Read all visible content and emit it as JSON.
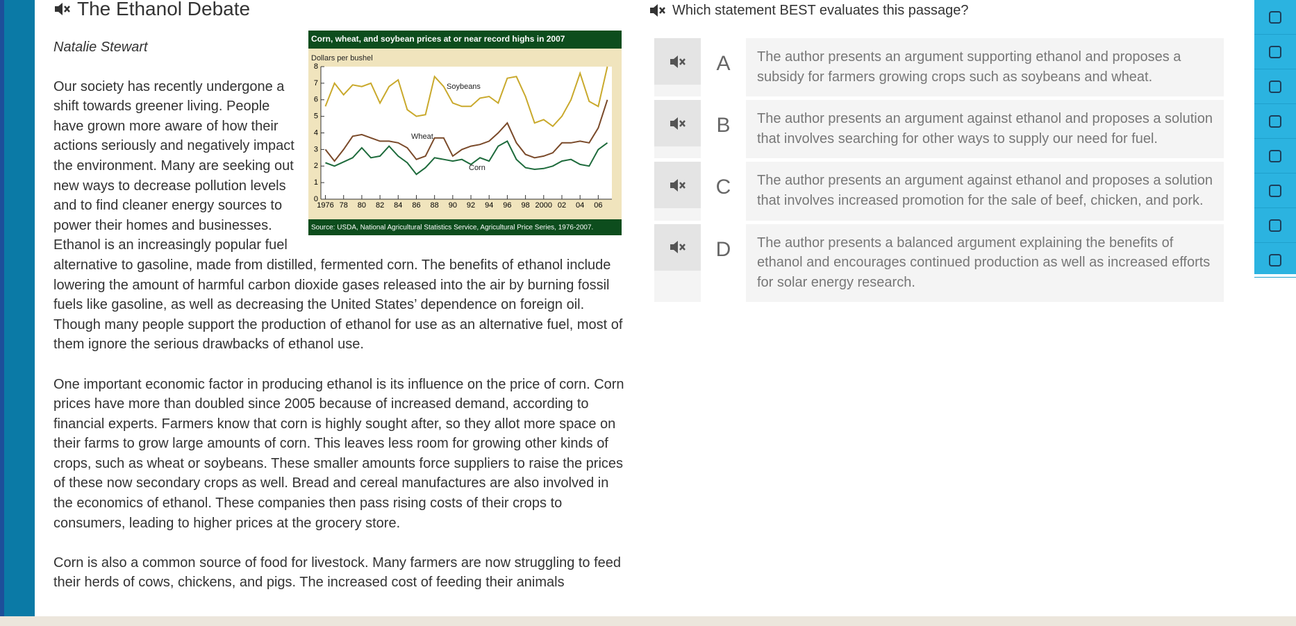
{
  "passage": {
    "title": "The Ethanol Debate",
    "author": "Natalie Stewart",
    "paragraphs": [
      "Our society has recently undergone a shift towards greener living. People have grown more aware of how their actions seriously and negatively impact the environment. Many are seeking out new ways to decrease pollution levels and to find cleaner energy sources to power their homes and businesses. Ethanol is an increasingly popular fuel alternative to gasoline, made from distilled, fermented corn. The benefits of ethanol include lowering the amount of harmful carbon dioxide gases released into the air by burning fossil fuels like gasoline, as well as decreasing the United States’ dependence on foreign oil. Though many people support the production of ethanol for use as an alternative fuel, most of them ignore the serious drawbacks of ethanol use.",
      "One important economic factor in producing ethanol is its influence on the price of corn. Corn prices have more than doubled since 2005 because of increased demand, according to financial experts. Farmers know that corn is highly sought after, so they allot more space on their farms to grow large amounts of corn. This leaves less room for growing other kinds of crops, such as wheat or soybeans. These smaller amounts force suppliers to raise the prices of these now secondary crops as well. Bread and cereal manufactures are also involved in the economics of ethanol. These companies then pass rising costs of their crops to consumers, leading to higher prices at the grocery store.",
      "Corn is also a common source of food for livestock. Many farmers are now struggling to feed their herds of cows, chickens, and pigs. The increased cost of feeding their animals"
    ]
  },
  "question": {
    "text": "Which statement BEST evaluates this passage?",
    "choices": [
      {
        "letter": "A",
        "text": "The author presents an argument supporting ethanol and proposes a subsidy for farmers growing crops such as soybeans and wheat."
      },
      {
        "letter": "B",
        "text": "The author presents an argument against ethanol and proposes a solution that involves searching for other ways to supply our need for fuel."
      },
      {
        "letter": "C",
        "text": "The author presents an argument against ethanol and proposes a solution that involves increased promotion for the sale of beef, chicken, and pork."
      },
      {
        "letter": "D",
        "text": "The author presents a balanced argument explaining the benefits of ethanol and encourages continued production as well as increased efforts for solar energy research."
      }
    ]
  },
  "chart_data": {
    "type": "line",
    "title": "Corn, wheat, and soybean prices at or near record highs in 2007",
    "y_label": "Dollars per bushel",
    "source": "Source: USDA, National Agricultural Statistics Service, Agricultural Price Series, 1976-2007.",
    "x": [
      1976,
      1977,
      1978,
      1979,
      1980,
      1981,
      1982,
      1983,
      1984,
      1985,
      1986,
      1987,
      1988,
      1989,
      1990,
      1991,
      1992,
      1993,
      1994,
      1995,
      1996,
      1997,
      1998,
      1999,
      2000,
      2001,
      2002,
      2003,
      2004,
      2005,
      2006,
      2007
    ],
    "series": [
      {
        "name": "Soybeans",
        "color": "#c9a92c",
        "values": [
          5.6,
          7.0,
          6.3,
          6.9,
          6.8,
          7.0,
          5.8,
          6.8,
          7.2,
          5.4,
          5.0,
          5.1,
          7.4,
          6.8,
          5.8,
          5.6,
          5.6,
          6.1,
          6.2,
          5.8,
          7.3,
          7.4,
          6.2,
          4.6,
          4.8,
          4.4,
          5.0,
          6.0,
          7.6,
          5.9,
          5.6,
          8.0
        ]
      },
      {
        "name": "Wheat",
        "color": "#7a4a2a",
        "values": [
          3.0,
          2.3,
          3.0,
          3.8,
          3.9,
          3.7,
          3.5,
          3.5,
          3.4,
          3.1,
          2.4,
          2.6,
          3.7,
          3.7,
          2.6,
          3.0,
          3.2,
          3.3,
          3.5,
          4.0,
          4.6,
          3.4,
          2.7,
          2.5,
          2.6,
          2.8,
          3.4,
          3.4,
          3.5,
          3.4,
          4.3,
          6.0
        ]
      },
      {
        "name": "Corn",
        "color": "#1e6b3c",
        "values": [
          2.2,
          2.0,
          2.25,
          2.5,
          3.1,
          2.5,
          2.6,
          3.2,
          2.6,
          2.2,
          1.5,
          1.9,
          2.5,
          2.4,
          2.3,
          2.4,
          2.1,
          2.5,
          2.3,
          3.2,
          3.5,
          2.4,
          1.9,
          1.8,
          1.85,
          2.0,
          2.3,
          2.4,
          2.1,
          2.0,
          3.0,
          3.4
        ]
      }
    ],
    "xlim": [
      1975.5,
      2007.5
    ],
    "xticks": [
      1976,
      {
        "value": 1978,
        "label": "78"
      },
      {
        "value": 1980,
        "label": "80"
      },
      {
        "value": 1982,
        "label": "82"
      },
      {
        "value": 1984,
        "label": "84"
      },
      {
        "value": 1986,
        "label": "86"
      },
      {
        "value": 1988,
        "label": "88"
      },
      {
        "value": 1990,
        "label": "90"
      },
      {
        "value": 1992,
        "label": "92"
      },
      {
        "value": 1994,
        "label": "94"
      },
      {
        "value": 1996,
        "label": "96"
      },
      {
        "value": 1998,
        "label": "98"
      },
      2000,
      {
        "value": 2002,
        "label": "02"
      },
      {
        "value": 2004,
        "label": "04"
      },
      {
        "value": 2006,
        "label": "06"
      }
    ],
    "ylim": [
      0,
      8
    ],
    "yticks": [
      0,
      1,
      2,
      3,
      4,
      5,
      6,
      7,
      8
    ]
  }
}
